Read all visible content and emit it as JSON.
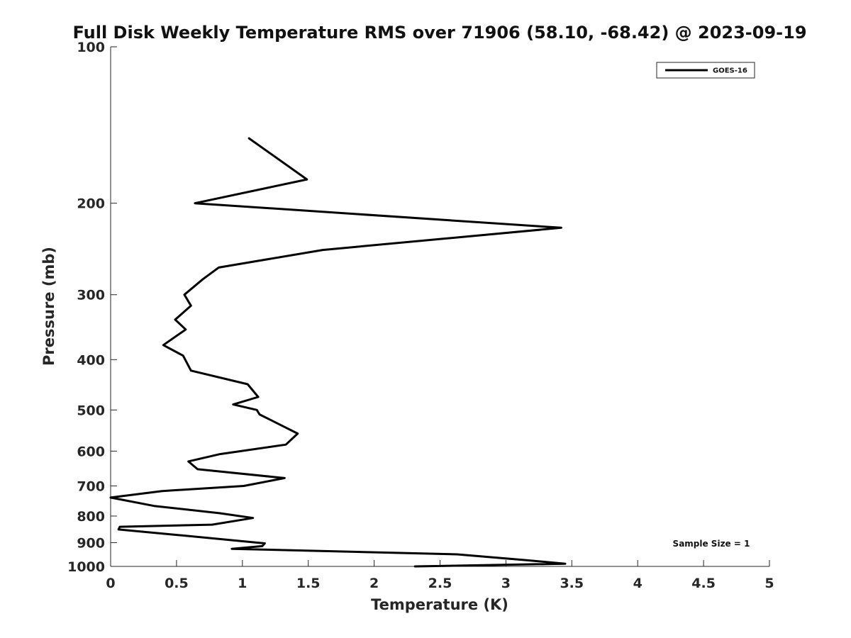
{
  "chart_data": {
    "type": "line",
    "title": "Full Disk Weekly Temperature RMS over 71906 (58.10, -68.42) @ 2023-09-19",
    "xlabel": "Temperature (K)",
    "ylabel": "Pressure (mb)",
    "xlim": [
      0,
      5
    ],
    "ylim": [
      100,
      1000
    ],
    "yscale": "log",
    "yaxis_reversed": true,
    "grid": false,
    "legend_position": "top-right",
    "x_ticks": [
      0,
      0.5,
      1,
      1.5,
      2,
      2.5,
      3,
      3.5,
      4,
      4.5,
      5
    ],
    "x_tick_labels": [
      "0",
      "0.5",
      "1",
      "1.5",
      "2",
      "2.5",
      "3",
      "3.5",
      "4",
      "4.5",
      "5"
    ],
    "y_ticks": [
      100,
      200,
      300,
      400,
      500,
      600,
      700,
      800,
      900,
      1000
    ],
    "y_tick_labels": [
      "100",
      "200",
      "300",
      "400",
      "500",
      "600",
      "700",
      "800",
      "900",
      "1000"
    ],
    "series": [
      {
        "name": "GOES-16",
        "color": "#000000",
        "x": [
          1.05,
          1.49,
          0.64,
          3.42,
          1.61,
          0.82,
          0.7,
          0.56,
          0.61,
          0.49,
          0.57,
          0.4,
          0.55,
          0.61,
          1.04,
          1.12,
          0.93,
          1.11,
          1.13,
          1.42,
          1.33,
          0.83,
          0.59,
          0.66,
          1.32,
          1.01,
          0.39,
          0.0,
          0.33,
          0.83,
          1.08,
          0.77,
          0.07,
          0.06,
          0.51,
          1.17,
          1.15,
          0.92,
          2.63,
          3.18,
          3.45,
          2.31
        ],
        "y": [
          150,
          180,
          200,
          223,
          246,
          266,
          280,
          300,
          315,
          335,
          350,
          375,
          393,
          420,
          446,
          472,
          488,
          500,
          510,
          555,
          583,
          608,
          628,
          650,
          676,
          700,
          716,
          737,
          765,
          790,
          807,
          831,
          839,
          849,
          870,
          903,
          914,
          925,
          948,
          974,
          988,
          1000
        ]
      }
    ],
    "legend": [
      "GOES-16"
    ],
    "annotations": [
      {
        "text": "Sample Size = 1",
        "position": "bottom-right"
      }
    ]
  }
}
